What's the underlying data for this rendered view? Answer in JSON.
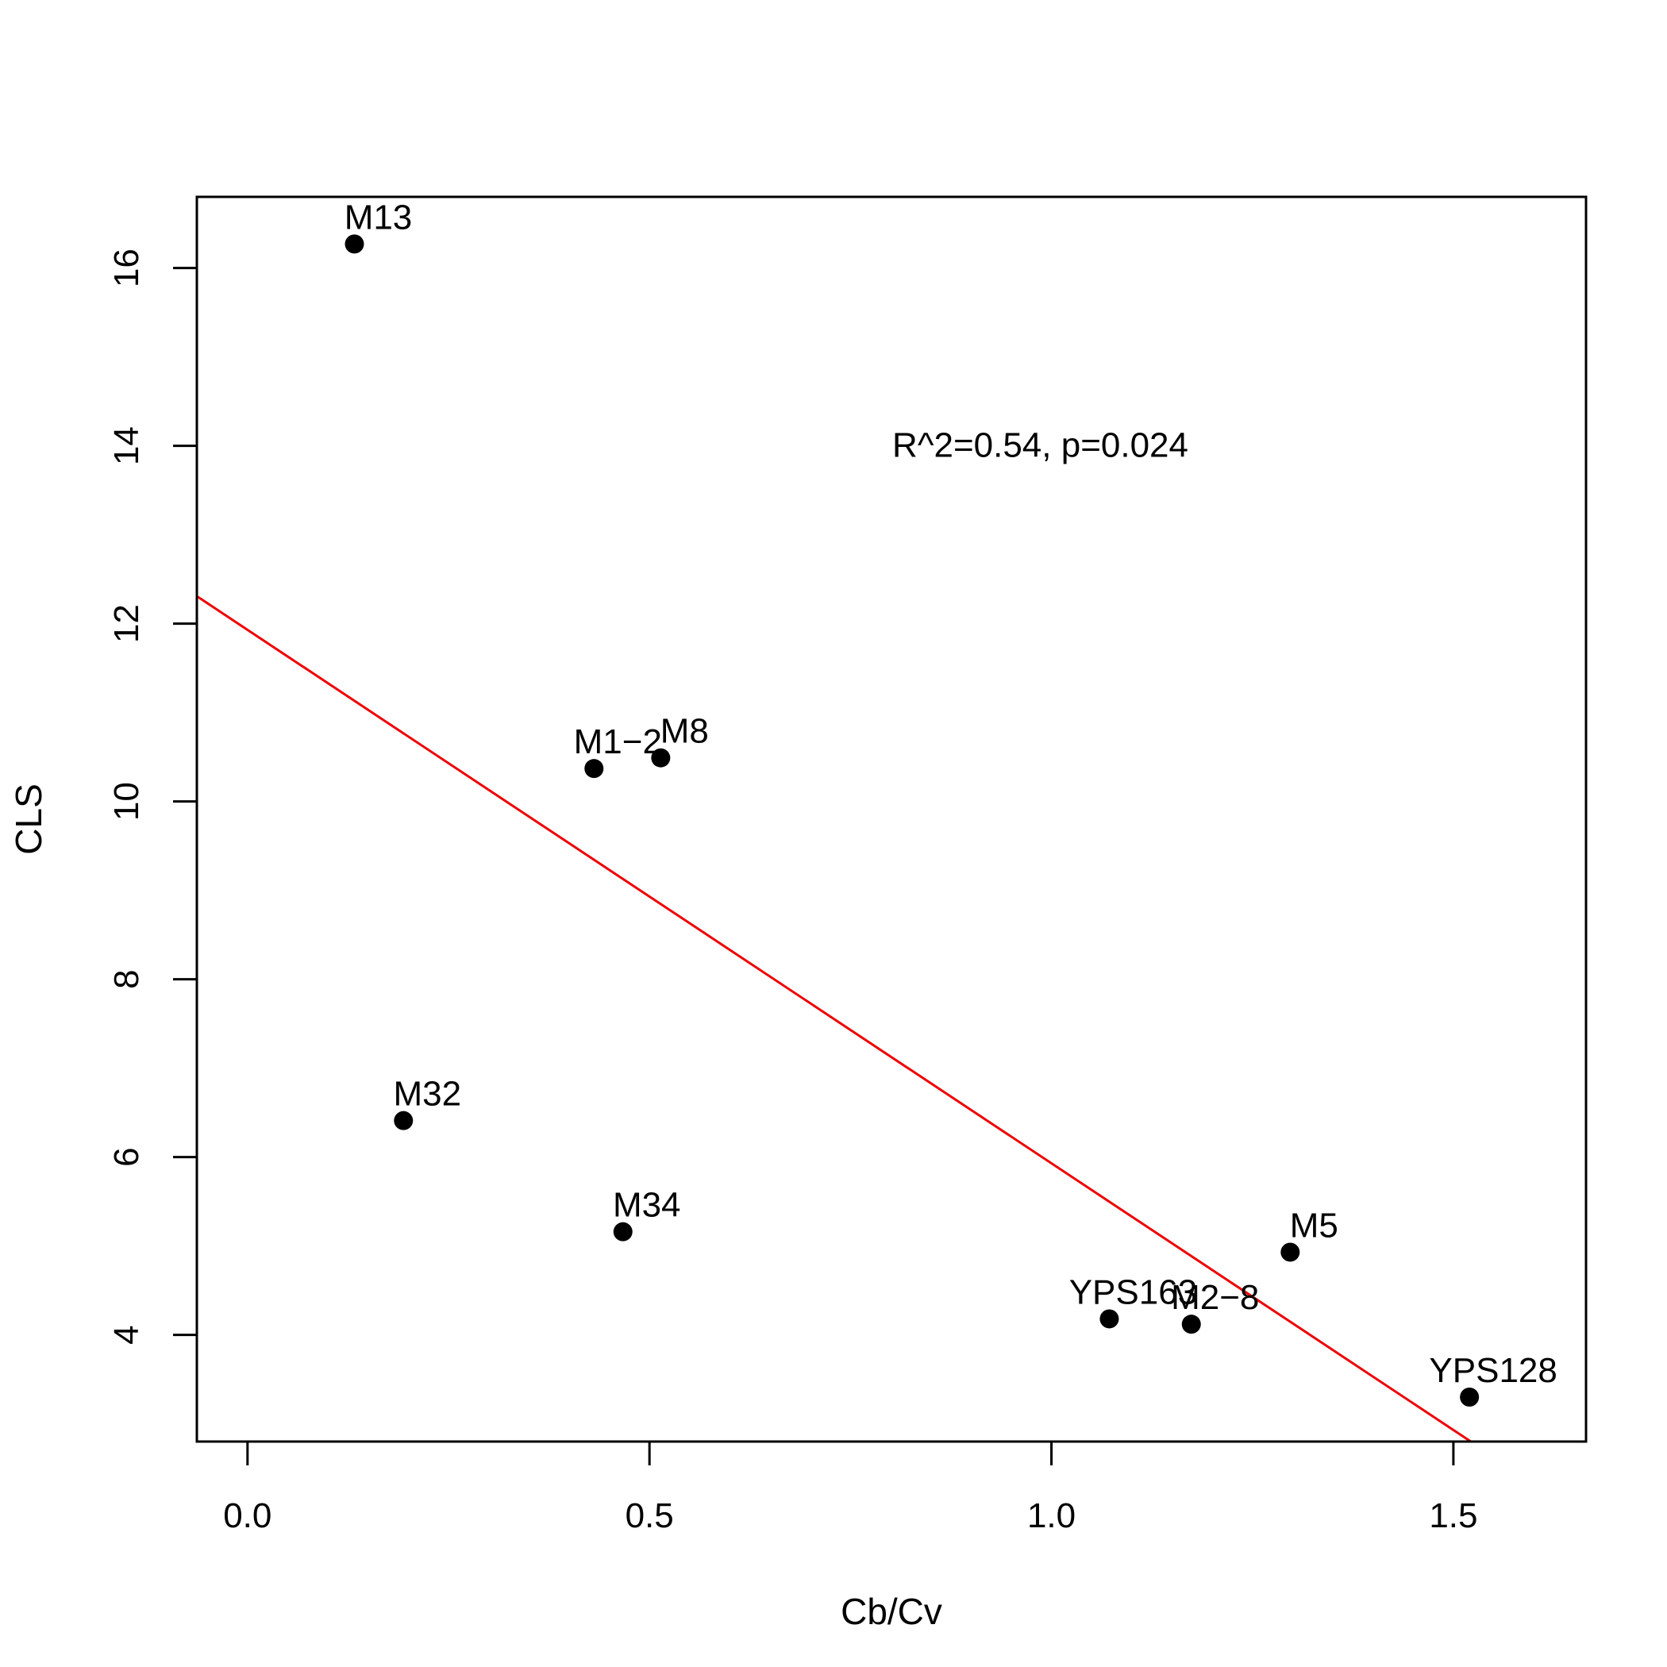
{
  "chart_data": {
    "type": "scatter",
    "title": "",
    "xlabel": "Cb/Cv",
    "ylabel": "CLS",
    "xlim": [
      -0.063,
      1.665
    ],
    "ylim": [
      2.8,
      16.8
    ],
    "x_ticks": [
      0.0,
      0.5,
      1.0,
      1.5
    ],
    "x_tick_labels": [
      "0.0",
      "0.5",
      "1.0",
      "1.5"
    ],
    "y_ticks": [
      4,
      6,
      8,
      10,
      12,
      14,
      16
    ],
    "y_tick_labels": [
      "4",
      "6",
      "8",
      "10",
      "12",
      "14",
      "16"
    ],
    "grid": false,
    "points": [
      {
        "label": "M13",
        "x": 0.133,
        "y": 16.27
      },
      {
        "label": "M1−2",
        "x": 0.431,
        "y": 10.37
      },
      {
        "label": "M8",
        "x": 0.514,
        "y": 10.49
      },
      {
        "label": "M32",
        "x": 0.194,
        "y": 6.41
      },
      {
        "label": "M34",
        "x": 0.467,
        "y": 5.16
      },
      {
        "label": "YPS163",
        "x": 1.072,
        "y": 4.18
      },
      {
        "label": "M2−8",
        "x": 1.174,
        "y": 4.12
      },
      {
        "label": "M5",
        "x": 1.297,
        "y": 4.93
      },
      {
        "label": "YPS128",
        "x": 1.52,
        "y": 3.3
      }
    ],
    "regression_line": {
      "color": "#ee0000",
      "slope": -6.0,
      "intercept": 11.93
    },
    "annotation": {
      "text": "R^2=0.54, p=0.024",
      "x": 1.0,
      "y": 14.0
    }
  }
}
